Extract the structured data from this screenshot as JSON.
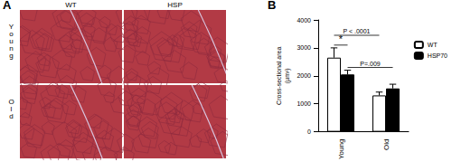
{
  "panel_a": {
    "label": "A",
    "columns": [
      "WT",
      "HSP"
    ],
    "rows": [
      "Young",
      "Old"
    ]
  },
  "chart_data": {
    "panel_label": "B",
    "type": "bar",
    "categories": [
      "Young",
      "Old"
    ],
    "series": [
      {
        "name": "WT",
        "color": "#ffffff",
        "values": [
          2650,
          1300
        ],
        "errors": [
          350,
          120
        ]
      },
      {
        "name": "HSP70",
        "color": "#000000",
        "values": [
          2050,
          1550
        ],
        "errors": [
          150,
          150
        ]
      }
    ],
    "y_label": "Cross-sectional area\n(µm²)",
    "ylim": [
      0,
      4000
    ],
    "yticks": [
      0,
      1000,
      2000,
      3000,
      4000
    ],
    "grid": false,
    "legend": "upper right",
    "annotations": [
      {
        "text": "P < .0001",
        "from": {
          "category": "Young",
          "series": "WT"
        },
        "to": {
          "category": "Old",
          "series": "WT"
        },
        "y": 3450
      },
      {
        "text": "*",
        "from": {
          "category": "Young",
          "series": "WT"
        },
        "to": {
          "category": "Young",
          "series": "HSP70"
        },
        "y": 3100
      },
      {
        "text": "P=.009",
        "from": {
          "category": "Young",
          "series": "HSP70"
        },
        "to": {
          "category": "Old",
          "series": "HSP70"
        },
        "y": 2300
      }
    ]
  }
}
